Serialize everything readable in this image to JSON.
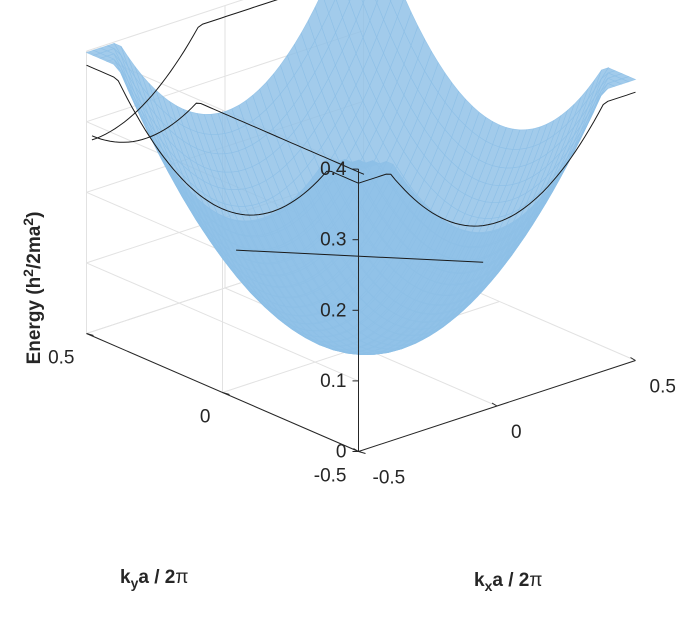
{
  "chart_data": {
    "type": "surface",
    "surface_color": "#8dbfe6",
    "axes": {
      "x": {
        "label_main": "k",
        "label_sub": "x",
        "label_rest": "a / 2",
        "label_pi": "π",
        "range": [
          -0.5,
          0.5
        ],
        "ticks": [
          -0.5,
          0,
          0.5
        ],
        "tick_labels": [
          "-0.5",
          "0",
          "0.5"
        ]
      },
      "y": {
        "label_main": "k",
        "label_sub": "y",
        "label_rest": "a / 2",
        "label_pi": "π",
        "range": [
          -0.5,
          0.5
        ],
        "ticks": [
          -0.5,
          0,
          0.5
        ],
        "tick_labels": [
          "-0.5",
          "0",
          "0.5"
        ]
      },
      "z": {
        "label_prefix": "Energy (h",
        "label_sup1": "2",
        "label_mid": "/2ma",
        "label_sup2": "2",
        "label_suffix": ")",
        "range": [
          0,
          0.4
        ],
        "ticks": [
          0,
          0.1,
          0.2,
          0.3,
          0.4
        ],
        "tick_labels": [
          "0",
          "0.1",
          "0.2",
          "0.3",
          "0.4"
        ]
      }
    },
    "grid": true,
    "function": "E = kx^2 + ky^2 (reduced to first Brillouin zone)",
    "folded_bands": true
  }
}
